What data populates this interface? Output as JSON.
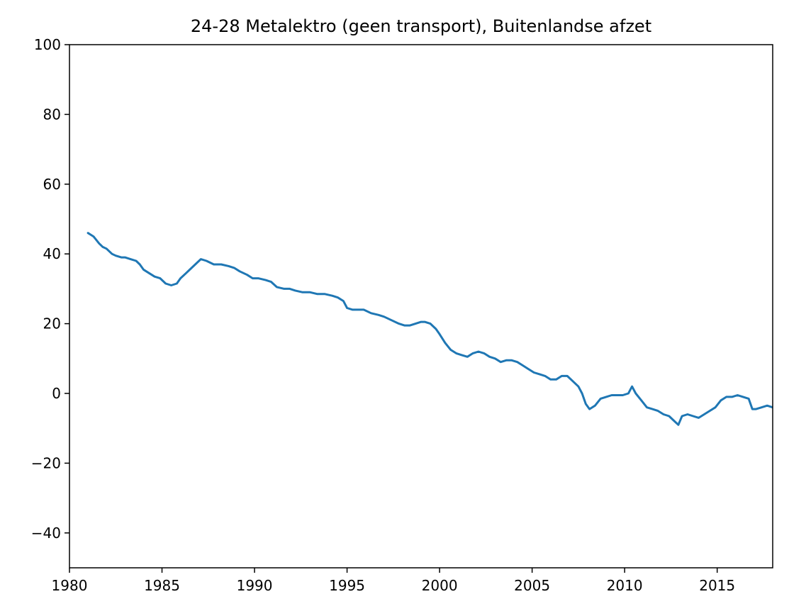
{
  "chart_data": {
    "type": "line",
    "title": "24-28 Metalektro (geen transport), Buitenlandse afzet",
    "xlabel": "",
    "ylabel": "",
    "xlim": [
      1980,
      2018
    ],
    "ylim": [
      -50,
      100
    ],
    "x_ticks": [
      {
        "value": 1980,
        "label": "1980"
      },
      {
        "value": 1985,
        "label": "1985"
      },
      {
        "value": 1990,
        "label": "1990"
      },
      {
        "value": 1995,
        "label": "1995"
      },
      {
        "value": 2000,
        "label": "2000"
      },
      {
        "value": 2005,
        "label": "2005"
      },
      {
        "value": 2010,
        "label": "2010"
      },
      {
        "value": 2015,
        "label": "2015"
      }
    ],
    "y_ticks": [
      {
        "value": 100,
        "label": "100"
      },
      {
        "value": 80,
        "label": "80"
      },
      {
        "value": 60,
        "label": "60"
      },
      {
        "value": 40,
        "label": "40"
      },
      {
        "value": 20,
        "label": "20"
      },
      {
        "value": 0,
        "label": "0"
      },
      {
        "value": -20,
        "label": "−20"
      },
      {
        "value": -40,
        "label": "−40"
      }
    ],
    "grid": false,
    "line_color": "#1f77b4",
    "series": [
      {
        "x": [
          1981.0,
          1981.3,
          1981.6,
          1981.8,
          1982.0,
          1982.3,
          1982.5,
          1982.8,
          1983.0,
          1983.3,
          1983.6,
          1983.8,
          1984.0,
          1984.3,
          1984.6,
          1984.9,
          1985.2,
          1985.5,
          1985.8,
          1986.0,
          1986.3,
          1986.6,
          1986.9,
          1987.1,
          1987.4,
          1987.8,
          1988.2,
          1988.6,
          1988.9,
          1989.2,
          1989.6,
          1989.9,
          1990.2,
          1990.6,
          1990.9,
          1991.2,
          1991.6,
          1991.9,
          1992.2,
          1992.6,
          1993.0,
          1993.4,
          1993.8,
          1994.2,
          1994.5,
          1994.8,
          1995.0,
          1995.3,
          1995.6,
          1995.9,
          1996.3,
          1996.7,
          1997.0,
          1997.4,
          1997.8,
          1998.1,
          1998.4,
          1998.7,
          1999.0,
          1999.2,
          1999.5,
          1999.8,
          2000.0,
          2000.3,
          2000.6,
          2000.9,
          2001.2,
          2001.5,
          2001.8,
          2002.1,
          2002.4,
          2002.7,
          2003.0,
          2003.3,
          2003.6,
          2003.9,
          2004.2,
          2004.5,
          2004.8,
          2005.1,
          2005.4,
          2005.7,
          2006.0,
          2006.3,
          2006.6,
          2006.9,
          2007.2,
          2007.5,
          2007.7,
          2007.9,
          2008.1,
          2008.4,
          2008.7,
          2009.0,
          2009.3,
          2009.6,
          2009.9,
          2010.2,
          2010.4,
          2010.6,
          2010.9,
          2011.2,
          2011.5,
          2011.8,
          2012.1,
          2012.4,
          2012.7,
          2012.9,
          2013.1,
          2013.4,
          2013.7,
          2014.0,
          2014.3,
          2014.6,
          2014.9,
          2015.2,
          2015.5,
          2015.8,
          2016.1,
          2016.4,
          2016.7,
          2016.9,
          2017.1,
          2017.4,
          2017.7,
          2018.0
        ],
        "values": [
          46,
          45,
          43,
          42,
          41.5,
          40,
          39.5,
          39,
          39,
          38.5,
          38,
          37,
          35.5,
          34.5,
          33.5,
          33,
          31.5,
          31,
          31.5,
          33,
          34.5,
          36,
          37.5,
          38.5,
          38,
          37,
          37,
          36.5,
          36,
          35,
          34,
          33,
          33,
          32.5,
          32,
          30.5,
          30,
          30,
          29.5,
          29,
          29,
          28.5,
          28.5,
          28,
          27.5,
          26.5,
          24.5,
          24,
          24,
          24,
          23,
          22.5,
          22,
          21,
          20,
          19.5,
          19.5,
          20,
          20.5,
          20.5,
          20,
          18.5,
          17,
          14.5,
          12.5,
          11.5,
          11,
          10.5,
          11.5,
          12,
          11.5,
          10.5,
          10,
          9,
          9.5,
          9.5,
          9,
          8,
          7,
          6,
          5.5,
          5,
          4,
          4,
          5,
          5,
          3.5,
          2,
          0,
          -3,
          -4.5,
          -3.5,
          -1.5,
          -1,
          -0.5,
          -0.5,
          -0.5,
          0,
          2,
          0,
          -2,
          -4,
          -4.5,
          -5,
          -6,
          -6.5,
          -8,
          -9,
          -6.5,
          -6,
          -6.5,
          -7,
          -6,
          -5,
          -4,
          -2,
          -1,
          -1,
          -0.5,
          -1,
          -1.5,
          -4.5,
          -4.5,
          -4,
          -3.5,
          -4
        ]
      }
    ]
  }
}
